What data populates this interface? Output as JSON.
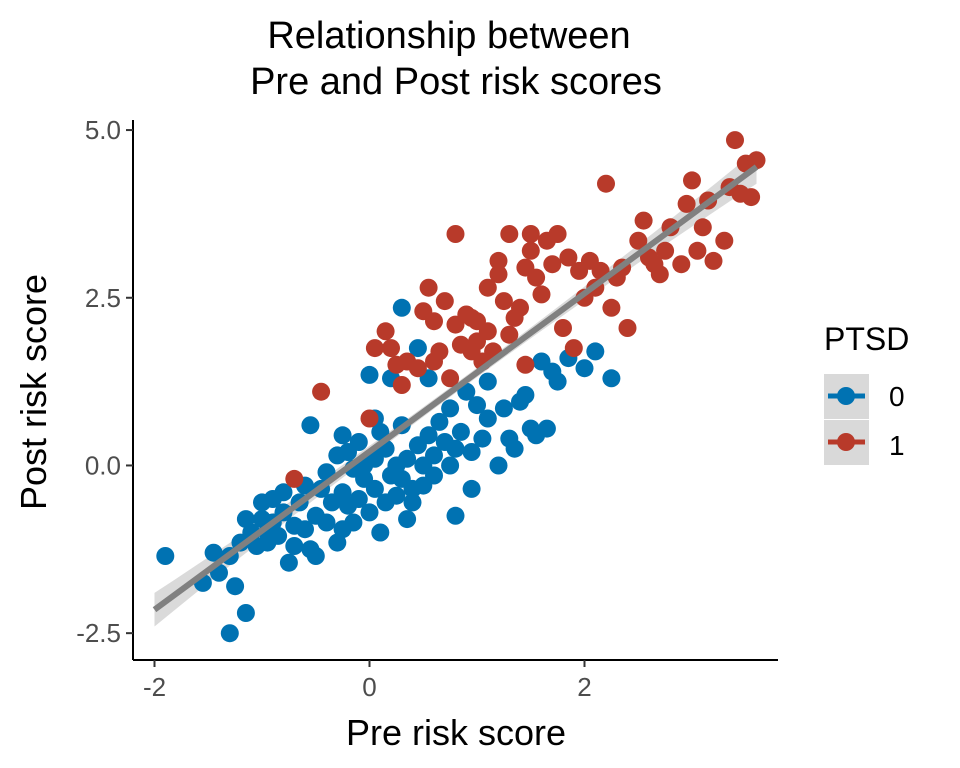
{
  "chart_data": {
    "type": "scatter",
    "title_lines": [
      "Relationship between",
      "Pre and Post risk scores"
    ],
    "xlabel": "Pre risk score",
    "ylabel": "Post risk score",
    "xlim": [
      -2.2,
      3.8
    ],
    "ylim": [
      -2.9,
      5.15
    ],
    "x_ticks": [
      -2,
      0,
      2
    ],
    "x_tick_labels": [
      "-2",
      "0",
      "2"
    ],
    "y_ticks": [
      -2.5,
      0.0,
      2.5,
      5.0
    ],
    "y_tick_labels": [
      "-2.5",
      "0.0",
      "2.5",
      "5.0"
    ],
    "grid": false,
    "legend": {
      "title": "PTSD",
      "position": "right",
      "entries": [
        "0",
        "1"
      ]
    },
    "colors": {
      "0": "#0072B2",
      "1": "#B83A2A",
      "fit_line": "#808080",
      "ribbon": "#d3d3d3",
      "legend_key_bg": "#d9d9d9"
    },
    "fit": {
      "x": [
        -2.0,
        3.6
      ],
      "y": [
        -2.15,
        4.45
      ],
      "ci_half_width_ends": 0.25,
      "ci_half_width_mid": 0.07
    },
    "series": [
      {
        "name": "0",
        "points": [
          [
            -1.9,
            -1.35
          ],
          [
            -1.55,
            -1.75
          ],
          [
            -1.45,
            -1.3
          ],
          [
            -1.4,
            -1.6
          ],
          [
            -1.3,
            -1.35
          ],
          [
            -1.3,
            -2.5
          ],
          [
            -1.25,
            -1.8
          ],
          [
            -1.2,
            -1.15
          ],
          [
            -1.15,
            -2.2
          ],
          [
            -1.15,
            -0.8
          ],
          [
            -1.1,
            -1.0
          ],
          [
            -1.05,
            -1.2
          ],
          [
            -1.0,
            -0.55
          ],
          [
            -1.0,
            -0.8
          ],
          [
            -0.95,
            -1.0
          ],
          [
            -0.95,
            -1.15
          ],
          [
            -0.9,
            -0.5
          ],
          [
            -0.9,
            -0.85
          ],
          [
            -0.85,
            -1.05
          ],
          [
            -0.8,
            -0.7
          ],
          [
            -0.8,
            -0.4
          ],
          [
            -0.75,
            -1.45
          ],
          [
            -0.7,
            -1.2
          ],
          [
            -0.7,
            -0.9
          ],
          [
            -0.65,
            -0.55
          ],
          [
            -0.6,
            -0.3
          ],
          [
            -0.6,
            -0.95
          ],
          [
            -0.55,
            -1.25
          ],
          [
            -0.5,
            -0.75
          ],
          [
            -0.5,
            -1.35
          ],
          [
            -0.45,
            -0.35
          ],
          [
            -0.4,
            -0.85
          ],
          [
            -0.4,
            -0.1
          ],
          [
            -0.35,
            -0.55
          ],
          [
            -0.3,
            -1.15
          ],
          [
            -0.3,
            0.15
          ],
          [
            -0.25,
            -0.95
          ],
          [
            -0.25,
            -0.4
          ],
          [
            -0.2,
            -0.6
          ],
          [
            -0.2,
            0.2
          ],
          [
            -0.15,
            -0.05
          ],
          [
            -0.15,
            -0.85
          ],
          [
            -0.1,
            0.35
          ],
          [
            -0.1,
            -0.5
          ],
          [
            -0.05,
            -0.2
          ],
          [
            -0.05,
            0.0
          ],
          [
            0.0,
            -0.7
          ],
          [
            0.0,
            1.35
          ],
          [
            0.05,
            0.1
          ],
          [
            0.05,
            -0.35
          ],
          [
            0.1,
            -1.0
          ],
          [
            0.1,
            0.5
          ],
          [
            0.15,
            0.25
          ],
          [
            0.15,
            -0.55
          ],
          [
            0.2,
            -0.15
          ],
          [
            0.2,
            1.3
          ],
          [
            0.25,
            0.0
          ],
          [
            0.25,
            -0.45
          ],
          [
            0.3,
            2.35
          ],
          [
            0.3,
            0.6
          ],
          [
            0.3,
            -0.2
          ],
          [
            0.35,
            -0.8
          ],
          [
            0.35,
            0.1
          ],
          [
            0.4,
            -0.55
          ],
          [
            0.4,
            -0.35
          ],
          [
            0.45,
            1.75
          ],
          [
            0.45,
            0.3
          ],
          [
            0.5,
            0.0
          ],
          [
            0.5,
            -0.3
          ],
          [
            0.55,
            1.3
          ],
          [
            0.55,
            0.45
          ],
          [
            0.6,
            0.15
          ],
          [
            0.6,
            -0.15
          ],
          [
            0.65,
            0.65
          ],
          [
            0.7,
            0.35
          ],
          [
            0.75,
            0.85
          ],
          [
            0.75,
            0.0
          ],
          [
            0.8,
            0.25
          ],
          [
            0.8,
            -0.75
          ],
          [
            0.85,
            0.5
          ],
          [
            0.9,
            1.1
          ],
          [
            0.95,
            -0.35
          ],
          [
            0.95,
            0.2
          ],
          [
            1.0,
            0.9
          ],
          [
            1.05,
            0.4
          ],
          [
            1.1,
            0.7
          ],
          [
            1.1,
            1.25
          ],
          [
            1.2,
            0.0
          ],
          [
            1.25,
            0.85
          ],
          [
            1.3,
            0.4
          ],
          [
            1.35,
            0.25
          ],
          [
            1.4,
            0.95
          ],
          [
            1.45,
            1.05
          ],
          [
            1.5,
            0.55
          ],
          [
            1.55,
            0.45
          ],
          [
            1.6,
            1.55
          ],
          [
            1.65,
            0.55
          ],
          [
            1.7,
            1.4
          ],
          [
            1.75,
            1.25
          ],
          [
            1.85,
            1.6
          ],
          [
            2.0,
            1.45
          ],
          [
            2.1,
            1.7
          ],
          [
            2.25,
            1.3
          ],
          [
            -0.55,
            0.6
          ],
          [
            -0.25,
            0.45
          ],
          [
            0.05,
            0.7
          ]
        ]
      },
      {
        "name": "1",
        "points": [
          [
            -0.7,
            -0.2
          ],
          [
            -0.45,
            1.1
          ],
          [
            0.0,
            0.7
          ],
          [
            0.05,
            1.75
          ],
          [
            0.15,
            2.0
          ],
          [
            0.2,
            1.75
          ],
          [
            0.25,
            1.5
          ],
          [
            0.3,
            1.2
          ],
          [
            0.35,
            1.55
          ],
          [
            0.45,
            1.45
          ],
          [
            0.5,
            2.3
          ],
          [
            0.55,
            2.65
          ],
          [
            0.6,
            2.15
          ],
          [
            0.6,
            1.55
          ],
          [
            0.65,
            1.7
          ],
          [
            0.7,
            2.45
          ],
          [
            0.75,
            1.3
          ],
          [
            0.8,
            3.45
          ],
          [
            0.8,
            2.1
          ],
          [
            0.85,
            1.8
          ],
          [
            0.9,
            2.25
          ],
          [
            0.95,
            2.2
          ],
          [
            1.0,
            1.85
          ],
          [
            1.05,
            1.55
          ],
          [
            1.1,
            2.0
          ],
          [
            1.1,
            2.65
          ],
          [
            1.15,
            1.7
          ],
          [
            1.2,
            2.85
          ],
          [
            1.2,
            3.05
          ],
          [
            1.25,
            2.45
          ],
          [
            1.3,
            1.95
          ],
          [
            1.35,
            2.2
          ],
          [
            1.4,
            2.35
          ],
          [
            1.45,
            2.95
          ],
          [
            1.45,
            1.5
          ],
          [
            1.5,
            3.45
          ],
          [
            1.5,
            3.2
          ],
          [
            1.55,
            2.8
          ],
          [
            1.6,
            2.55
          ],
          [
            1.65,
            3.35
          ],
          [
            1.7,
            3.0
          ],
          [
            1.75,
            3.45
          ],
          [
            1.8,
            2.05
          ],
          [
            1.85,
            3.1
          ],
          [
            1.9,
            1.75
          ],
          [
            1.95,
            2.9
          ],
          [
            2.0,
            2.5
          ],
          [
            2.05,
            3.05
          ],
          [
            2.1,
            2.65
          ],
          [
            2.15,
            2.9
          ],
          [
            2.2,
            4.2
          ],
          [
            2.25,
            2.35
          ],
          [
            2.35,
            2.95
          ],
          [
            2.4,
            2.05
          ],
          [
            2.5,
            3.35
          ],
          [
            2.55,
            3.65
          ],
          [
            2.6,
            3.1
          ],
          [
            2.65,
            3.0
          ],
          [
            2.7,
            2.85
          ],
          [
            2.75,
            3.2
          ],
          [
            2.8,
            3.55
          ],
          [
            2.9,
            3.0
          ],
          [
            2.95,
            3.9
          ],
          [
            3.0,
            4.25
          ],
          [
            3.05,
            3.2
          ],
          [
            3.1,
            3.55
          ],
          [
            3.15,
            3.95
          ],
          [
            3.2,
            3.05
          ],
          [
            3.3,
            3.35
          ],
          [
            3.35,
            4.15
          ],
          [
            3.4,
            4.85
          ],
          [
            3.45,
            4.05
          ],
          [
            3.5,
            4.5
          ],
          [
            3.55,
            4.0
          ],
          [
            3.6,
            4.55
          ],
          [
            2.3,
            2.8
          ],
          [
            1.0,
            2.15
          ],
          [
            1.3,
            3.45
          ],
          [
            0.95,
            1.7
          ]
        ]
      }
    ]
  }
}
